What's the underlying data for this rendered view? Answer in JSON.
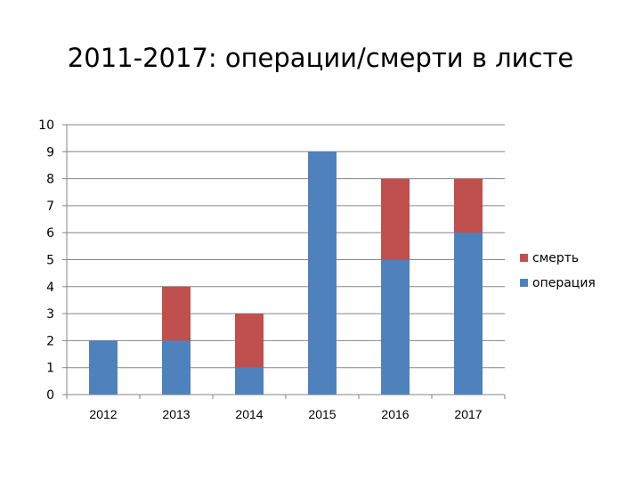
{
  "chart_data": {
    "type": "bar",
    "stacked": true,
    "title": "2011-2017: операции/смерти в листе",
    "xlabel": "",
    "ylabel": "",
    "categories": [
      "2012",
      "2013",
      "2014",
      "2015",
      "2016",
      "2017"
    ],
    "series": [
      {
        "name": "операция",
        "color": "#4f81bd",
        "values": [
          2,
          2,
          1,
          9,
          5,
          6
        ]
      },
      {
        "name": "смерть",
        "color": "#c0504d",
        "values": [
          0,
          2,
          2,
          0,
          3,
          2
        ]
      }
    ],
    "ylim": [
      0,
      10
    ],
    "yticks": [
      0,
      1,
      2,
      3,
      4,
      5,
      6,
      7,
      8,
      9,
      10
    ],
    "grid": true,
    "legend_position": "right",
    "legend_order": [
      "смерть",
      "операция"
    ]
  }
}
